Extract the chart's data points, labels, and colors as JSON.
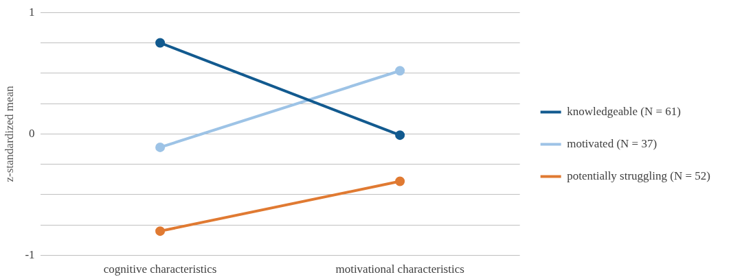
{
  "chart_data": {
    "type": "line",
    "ylabel": "z-standardized mean",
    "categories": [
      "cognitive characteristics",
      "motivational characteristics"
    ],
    "series": [
      {
        "name": "knowledgeable (N = 61)",
        "color": "#125a8f",
        "values": [
          0.75,
          -0.01
        ]
      },
      {
        "name": "motivated (N = 37)",
        "color": "#9dc3e6",
        "values": [
          -0.11,
          0.52
        ]
      },
      {
        "name": "potentially struggling (N = 52)",
        "color": "#e07a32",
        "values": [
          -0.8,
          -0.39
        ]
      }
    ],
    "ylim": [
      -1,
      1
    ],
    "yticks": [
      -1,
      {
        "value": -0.75,
        "label": null
      },
      {
        "value": -0.5,
        "label": null
      },
      {
        "value": -0.25,
        "label": null
      },
      0,
      {
        "value": 0.25,
        "label": null
      },
      {
        "value": 0.5,
        "label": null
      },
      {
        "value": 0.75,
        "label": null
      },
      1
    ],
    "grid": "y",
    "legend": "right",
    "marker": "circle",
    "line_style": "solid"
  }
}
